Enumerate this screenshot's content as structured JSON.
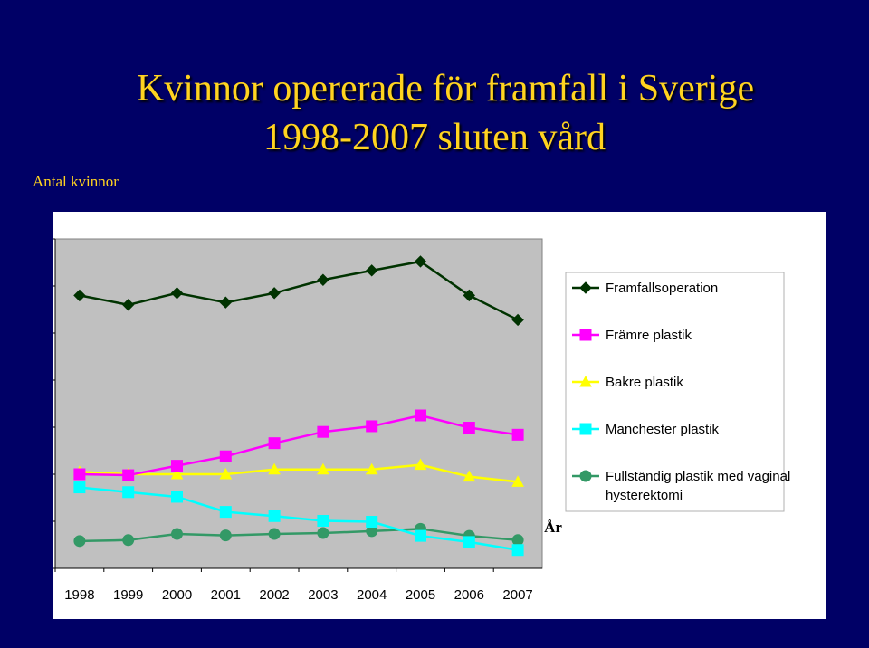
{
  "title_line1": "Kvinnor opererade för framfall i Sverige",
  "title_line2": "1998-2007 sluten vård",
  "ylabel": "Antal kvinnor",
  "chart_data": {
    "type": "line",
    "xlabel": "År",
    "ylabel": "Antal kvinnor",
    "categories": [
      "1998",
      "1999",
      "2000",
      "2001",
      "2002",
      "2003",
      "2004",
      "2005",
      "2006",
      "2007"
    ],
    "ylim": [
      0,
      7000
    ],
    "yticks": [
      "0",
      "1000",
      "2000",
      "3000",
      "4000",
      "5000",
      "6000",
      "7000"
    ],
    "grid": false,
    "plot_background": "#C0C0C0",
    "legend_position": "right",
    "series": [
      {
        "name": "Framfallsoperation",
        "color": "#003300",
        "marker": "diamond",
        "values": [
          5800,
          5600,
          5850,
          5650,
          5850,
          6130,
          6330,
          6520,
          5800,
          5280
        ]
      },
      {
        "name": "Främre plastik",
        "color": "#FF00FF",
        "marker": "square",
        "values": [
          2000,
          1980,
          2180,
          2380,
          2660,
          2900,
          3020,
          3250,
          2990,
          2840
        ]
      },
      {
        "name": "Bakre plastik",
        "color": "#FFFF00",
        "marker": "triangle",
        "values": [
          2050,
          2000,
          2000,
          2000,
          2100,
          2100,
          2100,
          2200,
          1950,
          1840
        ]
      },
      {
        "name": "Manchester plastik",
        "color": "#00FFFF",
        "marker": "square",
        "values": [
          1720,
          1620,
          1520,
          1200,
          1110,
          1010,
          990,
          690,
          560,
          390
        ]
      },
      {
        "name": "Fullständig plastik med vaginal hysterektomi",
        "color": "#339966",
        "marker": "circle",
        "values": [
          580,
          600,
          730,
          700,
          730,
          750,
          790,
          840,
          690,
          600
        ]
      }
    ]
  }
}
